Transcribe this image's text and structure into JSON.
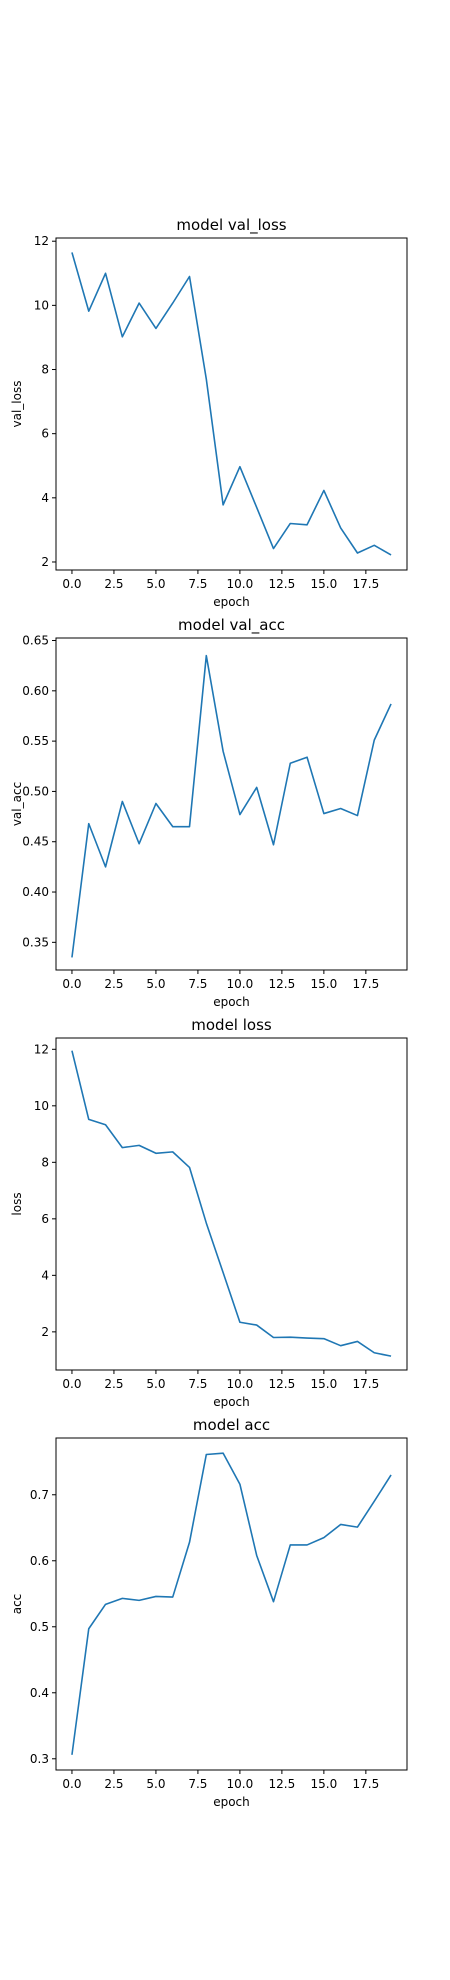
{
  "chart_data": [
    {
      "type": "line",
      "title": "model val_loss",
      "xlabel": "epoch",
      "ylabel": "val_loss",
      "x": [
        0,
        1,
        2,
        3,
        4,
        5,
        6,
        7,
        8,
        9,
        10,
        11,
        12,
        13,
        14,
        15,
        16,
        17,
        18,
        19
      ],
      "xticks": [
        "0.0",
        "2.5",
        "5.0",
        "7.5",
        "10.0",
        "12.5",
        "15.0",
        "17.5"
      ],
      "xtick_values": [
        0,
        2.5,
        5,
        7.5,
        10,
        12.5,
        15,
        17.5
      ],
      "yticks": [
        "2",
        "4",
        "6",
        "8",
        "10",
        "12"
      ],
      "ytick_values": [
        2,
        4,
        6,
        8,
        10,
        12
      ],
      "xlim": [
        -0.95,
        19.95
      ],
      "ylim": [
        1.75,
        12.1
      ],
      "grid": false,
      "series": [
        {
          "color": "#1f77b4",
          "values": [
            11.65,
            9.82,
            11.0,
            9.02,
            10.07,
            9.28,
            10.07,
            10.9,
            7.7,
            3.78,
            4.97,
            3.7,
            2.42,
            3.2,
            3.16,
            4.23,
            3.06,
            2.28,
            2.52,
            2.22
          ]
        }
      ]
    },
    {
      "type": "line",
      "title": "model val_acc",
      "xlabel": "epoch",
      "ylabel": "val_acc",
      "x": [
        0,
        1,
        2,
        3,
        4,
        5,
        6,
        7,
        8,
        9,
        10,
        11,
        12,
        13,
        14,
        15,
        16,
        17,
        18,
        19
      ],
      "xticks": [
        "0.0",
        "2.5",
        "5.0",
        "7.5",
        "10.0",
        "12.5",
        "15.0",
        "17.5"
      ],
      "xtick_values": [
        0,
        2.5,
        5,
        7.5,
        10,
        12.5,
        15,
        17.5
      ],
      "yticks": [
        "0.35",
        "0.40",
        "0.45",
        "0.50",
        "0.55",
        "0.60",
        "0.65"
      ],
      "ytick_values": [
        0.35,
        0.4,
        0.45,
        0.5,
        0.55,
        0.6,
        0.65
      ],
      "xlim": [
        -0.95,
        19.95
      ],
      "ylim": [
        0.3225,
        0.6525
      ],
      "grid": false,
      "series": [
        {
          "color": "#1f77b4",
          "values": [
            0.335,
            0.468,
            0.425,
            0.49,
            0.448,
            0.488,
            0.465,
            0.465,
            0.635,
            0.54,
            0.477,
            0.504,
            0.447,
            0.528,
            0.534,
            0.478,
            0.483,
            0.476,
            0.551,
            0.587
          ]
        }
      ]
    },
    {
      "type": "line",
      "title": "model loss",
      "xlabel": "epoch",
      "ylabel": "loss",
      "x": [
        0,
        1,
        2,
        3,
        4,
        5,
        6,
        7,
        8,
        9,
        10,
        11,
        12,
        13,
        14,
        15,
        16,
        17,
        18,
        19
      ],
      "xticks": [
        "0.0",
        "2.5",
        "5.0",
        "7.5",
        "10.0",
        "12.5",
        "15.0",
        "17.5"
      ],
      "xtick_values": [
        0,
        2.5,
        5,
        7.5,
        10,
        12.5,
        15,
        17.5
      ],
      "yticks": [
        "2",
        "4",
        "6",
        "8",
        "10",
        "12"
      ],
      "ytick_values": [
        2,
        4,
        6,
        8,
        10,
        12
      ],
      "xlim": [
        -0.95,
        19.95
      ],
      "ylim": [
        0.65,
        12.4
      ],
      "grid": false,
      "series": [
        {
          "color": "#1f77b4",
          "values": [
            11.95,
            9.52,
            9.33,
            8.52,
            8.6,
            8.32,
            8.37,
            7.82,
            5.85,
            4.1,
            2.34,
            2.24,
            1.8,
            1.81,
            1.78,
            1.76,
            1.51,
            1.66,
            1.26,
            1.14
          ]
        }
      ]
    },
    {
      "type": "line",
      "title": "model acc",
      "xlabel": "epoch",
      "ylabel": "acc",
      "x": [
        0,
        1,
        2,
        3,
        4,
        5,
        6,
        7,
        8,
        9,
        10,
        11,
        12,
        13,
        14,
        15,
        16,
        17,
        18,
        19
      ],
      "xticks": [
        "0.0",
        "2.5",
        "5.0",
        "7.5",
        "10.0",
        "12.5",
        "15.0",
        "17.5"
      ],
      "xtick_values": [
        0,
        2.5,
        5,
        7.5,
        10,
        12.5,
        15,
        17.5
      ],
      "yticks": [
        "0.3",
        "0.4",
        "0.5",
        "0.6",
        "0.7"
      ],
      "ytick_values": [
        0.3,
        0.4,
        0.5,
        0.6,
        0.7
      ],
      "xlim": [
        -0.95,
        19.95
      ],
      "ylim": [
        0.283,
        0.786
      ],
      "grid": false,
      "series": [
        {
          "color": "#1f77b4",
          "values": [
            0.306,
            0.497,
            0.534,
            0.543,
            0.54,
            0.546,
            0.545,
            0.628,
            0.761,
            0.763,
            0.716,
            0.608,
            0.538,
            0.624,
            0.624,
            0.635,
            0.655,
            0.651,
            0.69,
            0.73
          ]
        }
      ]
    }
  ]
}
